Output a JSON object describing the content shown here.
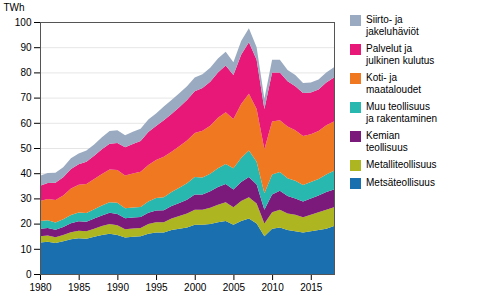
{
  "chart_data": {
    "type": "area",
    "stacked": true,
    "ylabel": "TWh",
    "x": [
      1980,
      1981,
      1982,
      1983,
      1984,
      1985,
      1986,
      1987,
      1988,
      1989,
      1990,
      1991,
      1992,
      1993,
      1994,
      1995,
      1996,
      1997,
      1998,
      1999,
      2000,
      2001,
      2002,
      2003,
      2004,
      2005,
      2006,
      2007,
      2008,
      2009,
      2010,
      2011,
      2012,
      2013,
      2014,
      2015,
      2016,
      2017,
      2018
    ],
    "series": [
      {
        "name": "Metsäteollisuus",
        "color": "#1a6faf",
        "values": [
          12.5,
          12.8,
          12.3,
          13.0,
          13.8,
          14.2,
          14.0,
          14.8,
          15.5,
          16.0,
          15.5,
          14.5,
          14.8,
          15.0,
          16.0,
          16.5,
          16.5,
          17.5,
          18.0,
          18.5,
          19.5,
          19.5,
          19.8,
          20.5,
          21.0,
          19.5,
          21.0,
          22.0,
          20.0,
          15.0,
          18.0,
          18.5,
          17.5,
          17.0,
          16.5,
          17.0,
          17.5,
          18.0,
          19.0
        ]
      },
      {
        "name": "Metalliteollisuus",
        "color": "#adb520",
        "values": [
          2.5,
          2.5,
          2.3,
          2.5,
          2.8,
          3.0,
          3.0,
          3.2,
          3.5,
          3.8,
          3.8,
          3.3,
          3.3,
          3.3,
          3.8,
          4.0,
          4.0,
          4.5,
          5.0,
          5.5,
          6.0,
          6.0,
          6.5,
          7.0,
          7.5,
          7.0,
          8.0,
          8.5,
          8.0,
          5.0,
          6.5,
          7.0,
          6.5,
          6.5,
          6.0,
          6.5,
          7.0,
          7.5,
          7.5
        ]
      },
      {
        "name": "Kemian\nteollisuus",
        "color": "#7b1a7b",
        "values": [
          3.0,
          3.0,
          3.0,
          3.2,
          3.5,
          3.7,
          3.7,
          4.0,
          4.2,
          4.5,
          4.5,
          4.3,
          4.3,
          4.3,
          4.5,
          4.7,
          4.8,
          5.0,
          5.2,
          5.5,
          6.0,
          6.0,
          6.5,
          7.0,
          7.2,
          7.0,
          7.5,
          8.0,
          7.5,
          5.5,
          7.0,
          7.5,
          7.0,
          6.5,
          6.3,
          6.5,
          6.7,
          7.0,
          7.0
        ]
      },
      {
        "name": "Muu teollisuus\nja rakentaminen",
        "color": "#29b8b0",
        "values": [
          3.0,
          3.0,
          2.8,
          3.0,
          3.3,
          3.5,
          3.5,
          3.7,
          4.0,
          4.2,
          4.5,
          4.0,
          4.0,
          4.0,
          4.5,
          5.0,
          5.2,
          5.5,
          6.0,
          6.5,
          7.0,
          6.8,
          7.0,
          7.5,
          8.0,
          8.5,
          9.5,
          10.5,
          9.0,
          6.5,
          8.0,
          7.5,
          7.0,
          7.0,
          6.5,
          6.5,
          6.5,
          7.0,
          7.5
        ]
      },
      {
        "name": "Koti- ja\nmaataloudet",
        "color": "#f07820",
        "values": [
          8.0,
          8.5,
          9.0,
          9.5,
          10.5,
          11.0,
          11.5,
          12.0,
          12.5,
          13.0,
          13.0,
          13.0,
          13.5,
          14.0,
          14.5,
          15.0,
          16.0,
          16.0,
          16.5,
          17.0,
          17.5,
          18.5,
          19.0,
          20.0,
          20.5,
          19.5,
          21.5,
          22.5,
          21.0,
          17.5,
          21.0,
          20.5,
          20.5,
          20.0,
          19.5,
          19.0,
          19.0,
          19.5,
          19.5
        ]
      },
      {
        "name": "Palvelut ja\njulkinen kulutus",
        "color": "#e81878",
        "values": [
          6.0,
          6.3,
          6.8,
          7.2,
          7.8,
          8.2,
          8.8,
          9.2,
          9.8,
          10.2,
          10.7,
          11.2,
          11.7,
          12.2,
          13.0,
          13.5,
          14.5,
          15.0,
          15.5,
          16.0,
          16.5,
          17.0,
          17.5,
          18.0,
          18.5,
          17.5,
          19.5,
          20.5,
          19.5,
          16.0,
          19.5,
          19.0,
          18.0,
          17.5,
          17.0,
          16.5,
          16.5,
          17.0,
          17.5
        ]
      },
      {
        "name": "Siirto- ja\njakeluhäviöt",
        "color": "#9aaac0",
        "values": [
          4.0,
          4.0,
          4.0,
          4.0,
          4.2,
          4.2,
          4.5,
          4.5,
          4.8,
          5.0,
          5.0,
          4.8,
          4.8,
          4.8,
          5.0,
          5.0,
          5.5,
          5.5,
          5.5,
          5.5,
          5.5,
          5.5,
          5.5,
          5.5,
          5.5,
          5.0,
          5.5,
          5.5,
          5.0,
          4.0,
          5.0,
          5.0,
          4.5,
          4.5,
          4.0,
          4.0,
          4.0,
          4.0,
          4.0
        ]
      }
    ],
    "xlim": [
      1980,
      2018
    ],
    "xticks": [
      1980,
      1985,
      1990,
      1995,
      2000,
      2005,
      2010,
      2015
    ],
    "ylim": [
      0,
      100
    ],
    "yticks": [
      0,
      10,
      20,
      30,
      40,
      50,
      60,
      70,
      80,
      90,
      100
    ],
    "grid": true,
    "legend": "right"
  }
}
